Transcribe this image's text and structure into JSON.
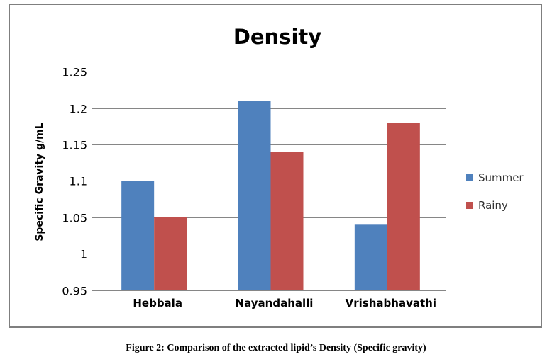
{
  "chart_data": {
    "type": "bar",
    "title": "Density",
    "xlabel": "",
    "ylabel": "Specific Gravity g/mL",
    "categories": [
      "Hebbala",
      "Nayandahalli",
      "Vrishabhavathi"
    ],
    "series": [
      {
        "name": "Summer",
        "values": [
          1.1,
          1.21,
          1.04
        ],
        "color": "#4f81bd"
      },
      {
        "name": "Rainy",
        "values": [
          1.05,
          1.14,
          1.18
        ],
        "color": "#c0504d"
      }
    ],
    "ylim": [
      0.95,
      1.25
    ],
    "yticks": [
      "1.25",
      "1.2",
      "1.15",
      "1.1",
      "1.05",
      "1",
      "0.95"
    ],
    "ytick_values": [
      1.25,
      1.2,
      1.15,
      1.1,
      1.05,
      1.0,
      0.95
    ],
    "grid": true,
    "legend": "right"
  },
  "caption": "Figure 2:  Comparison of the extracted lipid’s Density (Specific gravity)"
}
